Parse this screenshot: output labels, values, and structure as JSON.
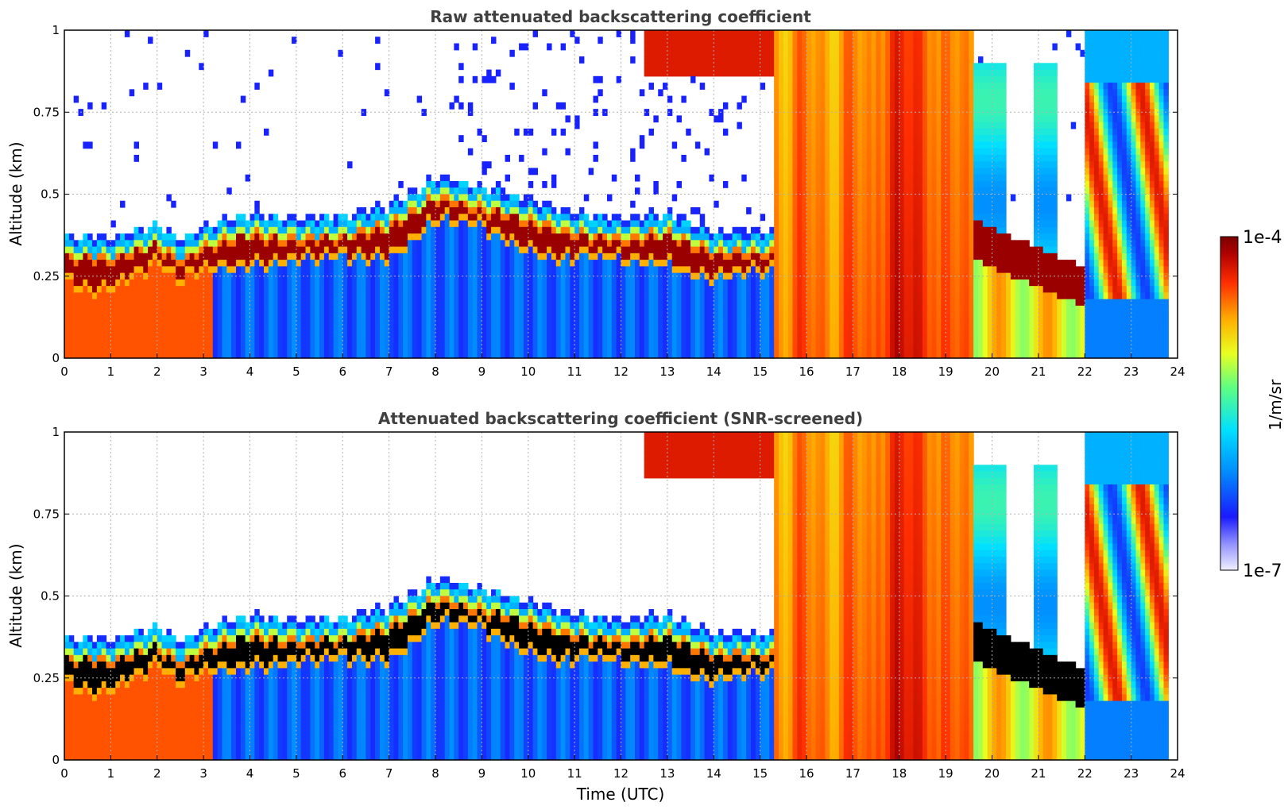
{
  "chart_data": [
    {
      "type": "heatmap",
      "title": "Raw attenuated backscattering coefficient",
      "xlabel": "",
      "ylabel": "Altitude (km)",
      "xlim": [
        0,
        24
      ],
      "ylim": [
        0,
        1
      ],
      "xticks": [
        "0",
        "1",
        "2",
        "3",
        "4",
        "5",
        "6",
        "7",
        "8",
        "9",
        "10",
        "11",
        "12",
        "13",
        "14",
        "15",
        "16",
        "17",
        "18",
        "19",
        "20",
        "21",
        "22",
        "23",
        "24"
      ],
      "yticks": [
        "0",
        "0.25",
        "0.5",
        "0.75",
        "1"
      ],
      "grid": true,
      "screened": false,
      "layer_top_km": [
        {
          "t": 0,
          "h": 0.35
        },
        {
          "t": 1,
          "h": 0.34
        },
        {
          "t": 2,
          "h": 0.39
        },
        {
          "t": 2.5,
          "h": 0.33
        },
        {
          "t": 3,
          "h": 0.38
        },
        {
          "t": 4,
          "h": 0.42
        },
        {
          "t": 5,
          "h": 0.4
        },
        {
          "t": 6,
          "h": 0.41
        },
        {
          "t": 7,
          "h": 0.44
        },
        {
          "t": 8,
          "h": 0.53
        },
        {
          "t": 9,
          "h": 0.5
        },
        {
          "t": 10,
          "h": 0.46
        },
        {
          "t": 11,
          "h": 0.42
        },
        {
          "t": 12,
          "h": 0.4
        },
        {
          "t": 13,
          "h": 0.42
        },
        {
          "t": 14,
          "h": 0.36
        },
        {
          "t": 15,
          "h": 0.36
        }
      ]
    },
    {
      "type": "heatmap",
      "title": "Attenuated backscattering coefficient (SNR-screened)",
      "xlabel": "Time (UTC)",
      "ylabel": "Altitude (km)",
      "xlim": [
        0,
        24
      ],
      "ylim": [
        0,
        1
      ],
      "xticks": [
        "0",
        "1",
        "2",
        "3",
        "4",
        "5",
        "6",
        "7",
        "8",
        "9",
        "10",
        "11",
        "12",
        "13",
        "14",
        "15",
        "16",
        "17",
        "18",
        "19",
        "20",
        "21",
        "22",
        "23",
        "24"
      ],
      "yticks": [
        "0",
        "0.25",
        "0.5",
        "0.75",
        "1"
      ],
      "grid": true,
      "screened": true
    }
  ],
  "colorbar": {
    "label": "1/m/sr",
    "max_label": "1e-4",
    "min_label": "1e-7",
    "colors": [
      "#e8e8ff",
      "#1a1aff",
      "#0090ff",
      "#00e0ff",
      "#50ff90",
      "#e0ff20",
      "#ffb000",
      "#ff3000",
      "#b00000",
      "#7a0000"
    ]
  }
}
